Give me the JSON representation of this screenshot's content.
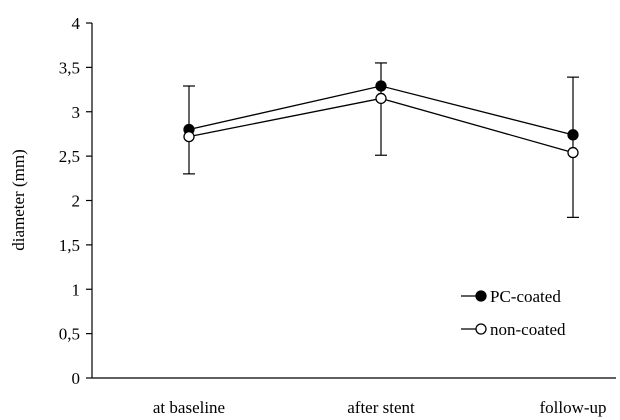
{
  "chart_data": {
    "type": "line",
    "title": "",
    "xlabel": "",
    "ylabel": "diameter (mm)",
    "categories": [
      "at baseline",
      "after stent",
      "follow-up"
    ],
    "ylim": [
      0,
      4
    ],
    "yticks": [
      "0",
      "0,5",
      "1",
      "1,5",
      "2",
      "2,5",
      "3",
      "3,5",
      "4"
    ],
    "ytick_values": [
      0,
      0.5,
      1,
      1.5,
      2,
      2.5,
      3,
      3.5,
      4
    ],
    "grid": false,
    "legend_position": "bottom-right",
    "series": [
      {
        "name": "PC-coated",
        "marker": "filled-circle",
        "color": "#000000",
        "values": [
          2.8,
          3.29,
          2.74
        ]
      },
      {
        "name": "non-coated",
        "marker": "open-circle",
        "color": "#000000",
        "values": [
          2.72,
          3.15,
          2.54
        ]
      }
    ],
    "error_bars": {
      "series": "combined",
      "values": [
        {
          "low": 2.3,
          "high": 3.29
        },
        {
          "low": 2.51,
          "high": 3.55
        },
        {
          "low": 1.81,
          "high": 3.39
        }
      ]
    }
  }
}
